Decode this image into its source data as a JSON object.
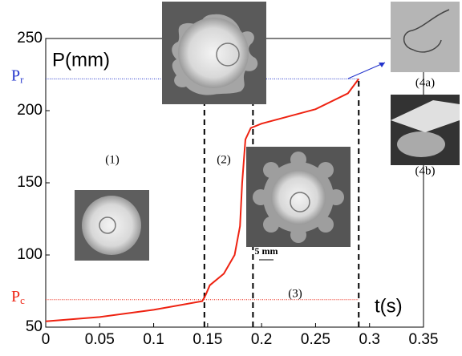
{
  "chart_data": {
    "type": "line",
    "y_label": "P(mm)",
    "x_label": "t(s)",
    "x": [
      0,
      0.05,
      0.1,
      0.145,
      0.148,
      0.152,
      0.165,
      0.175,
      0.18,
      0.182,
      0.185,
      0.19,
      0.2,
      0.25,
      0.28,
      0.29
    ],
    "series": [
      {
        "color": "#ee2211",
        "values": [
          54,
          57,
          62,
          68,
          72,
          79,
          87,
          100,
          120,
          150,
          180,
          188,
          191,
          201,
          212,
          222
        ]
      }
    ],
    "xlim": [
      0,
      0.35
    ],
    "ylim": [
      50,
      250
    ],
    "xticks": [
      0,
      0.05,
      0.1,
      0.15,
      0.2,
      0.25,
      0.3,
      0.35
    ],
    "yticks": [
      50,
      100,
      150,
      200,
      250
    ],
    "phase_boundaries": [
      0.147,
      0.192,
      0.29
    ],
    "reference_lines": [
      {
        "symbol": "P",
        "subscript": "r",
        "value": 222,
        "color": "#2233cc"
      },
      {
        "symbol": "P",
        "subscript": "c",
        "value": 69,
        "color": "#ee2211"
      }
    ],
    "annotations": [
      "(1)",
      "(2)",
      "(3)",
      "(4a)",
      "(4b)",
      "5 mm"
    ]
  }
}
